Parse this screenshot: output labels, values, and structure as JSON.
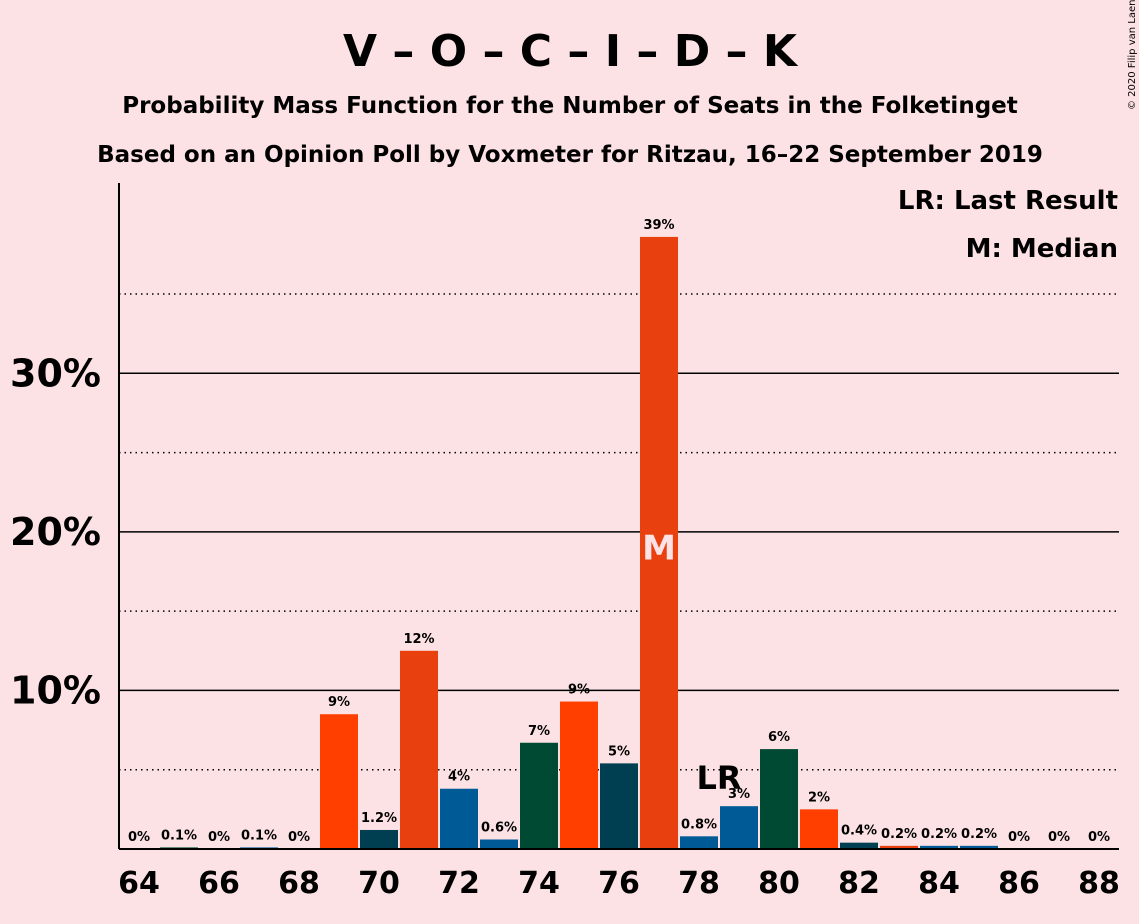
{
  "header": {
    "title": "V – O – C – I – D – K",
    "subtitle1": "Probability Mass Function for the Number of Seats in the Folketinget",
    "subtitle2": "Based on an Opinion Poll by Voxmeter for Ritzau, 16–22 September 2019"
  },
  "legend": {
    "last_result": "LR: Last Result",
    "median": "M: Median"
  },
  "copyright": "© 2020 Filip van Laenen",
  "colors": {
    "background": "#FDE2E5",
    "bars": [
      "#E8410F",
      "#004A33",
      "#FF3F00",
      "#005A96",
      "#003F52"
    ]
  },
  "chart_data": {
    "type": "bar",
    "x": [
      64,
      65,
      66,
      67,
      68,
      69,
      70,
      71,
      72,
      73,
      74,
      75,
      76,
      77,
      78,
      79,
      80,
      81,
      82,
      83,
      84,
      85,
      86,
      87,
      88
    ],
    "values": [
      0,
      0.1,
      0,
      0.1,
      0,
      8.5,
      1.2,
      12.5,
      3.8,
      0.6,
      6.7,
      9.3,
      5.4,
      38.6,
      0.8,
      2.7,
      6.3,
      2.5,
      0.4,
      0.2,
      0.2,
      0.2,
      0,
      0,
      0
    ],
    "data_labels": [
      "0%",
      "0.1%",
      "0%",
      "0.1%",
      "0%",
      "9%",
      "1.2%",
      "12%",
      "4%",
      "0.6%",
      "7%",
      "9%",
      "5%",
      "39%",
      "0.8%",
      "3%",
      "6%",
      "2%",
      "0.4%",
      "0.2%",
      "0.2%",
      "0.2%",
      "0%",
      "0%",
      "0%"
    ],
    "bar_colors": [
      "#E8410F",
      "#004A33",
      "#FF3F00",
      "#005A96",
      "#003F52",
      "#FF3F00",
      "#003F52",
      "#E8410F",
      "#005A96",
      "#005A96",
      "#004A33",
      "#FF3F00",
      "#003F52",
      "#E8410F",
      "#005A96",
      "#005A96",
      "#004A33",
      "#FF3F00",
      "#003F52",
      "#E8410F",
      "#005A96",
      "#005A96",
      "#004A33",
      "#FF3F00",
      "#003F52"
    ],
    "xticks": [
      64,
      66,
      68,
      70,
      72,
      74,
      76,
      78,
      80,
      82,
      84,
      86,
      88
    ],
    "yticks": [
      {
        "value": 10,
        "label": "10%"
      },
      {
        "value": 20,
        "label": "20%"
      },
      {
        "value": 30,
        "label": "30%"
      }
    ],
    "dotted_gridlines": [
      5,
      15,
      25,
      35
    ],
    "ylim": [
      0,
      42
    ],
    "last_result": {
      "seat": 79,
      "label": "LR"
    },
    "median": {
      "seat": 77,
      "label": "M"
    }
  }
}
